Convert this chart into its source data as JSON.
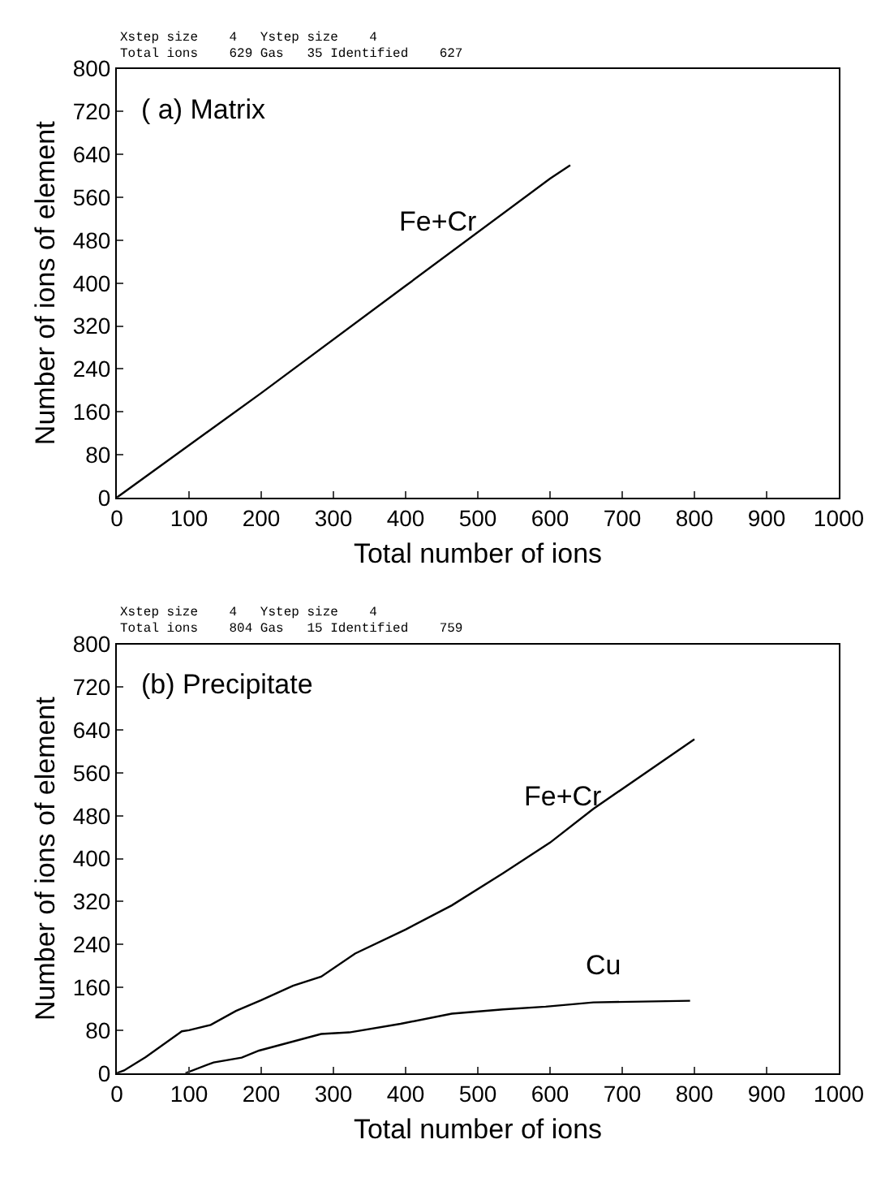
{
  "chart_data": [
    {
      "type": "line",
      "title": "( a) Matrix",
      "xlabel": "Total number of ions",
      "ylabel": "Number of ions of element",
      "annotations": [
        "Xstep size    4   Ystep size    4",
        "Total ions    629 Gas   35 Identified    627"
      ],
      "xlim": [
        0,
        1000
      ],
      "ylim": [
        0,
        800
      ],
      "xticks": [
        0,
        100,
        200,
        300,
        400,
        500,
        600,
        700,
        800,
        900,
        1000
      ],
      "yticks": [
        0,
        80,
        160,
        240,
        320,
        400,
        480,
        560,
        640,
        720,
        800
      ],
      "marker": "none",
      "line_style": "solid",
      "series": [
        {
          "name": "Fe+Cr",
          "color": "#000000",
          "x": [
            0,
            200,
            400,
            600,
            628
          ],
          "values": [
            0,
            195,
            395,
            595,
            620
          ]
        }
      ]
    },
    {
      "type": "line",
      "title": "(b) Precipitate",
      "xlabel": "Total number of ions",
      "ylabel": "Number of ions of element",
      "annotations": [
        "Xstep size    4   Ystep size    4",
        "Total ions    804 Gas   15 Identified    759"
      ],
      "xlim": [
        0,
        1000
      ],
      "ylim": [
        0,
        800
      ],
      "xticks": [
        0,
        100,
        200,
        300,
        400,
        500,
        600,
        700,
        800,
        900,
        1000
      ],
      "yticks": [
        0,
        80,
        160,
        240,
        320,
        400,
        480,
        560,
        640,
        720,
        800
      ],
      "marker": "none",
      "line_style": "solid",
      "series": [
        {
          "name": "Fe+Cr",
          "color": "#000000",
          "x": [
            0,
            10,
            40,
            90,
            100,
            130,
            165,
            200,
            244,
            283,
            330,
            400,
            464,
            535,
            600,
            660,
            800
          ],
          "values": [
            0,
            5,
            30,
            78,
            80,
            90,
            116,
            136,
            163,
            180,
            223,
            268,
            313,
            373,
            430,
            493,
            623
          ]
        },
        {
          "name": "Cu",
          "color": "#000000",
          "x": [
            95,
            134,
            173,
            197,
            283,
            322,
            393,
            464,
            535,
            594,
            660,
            794
          ],
          "values": [
            0,
            20,
            29,
            42,
            73,
            76,
            92,
            111,
            119,
            124,
            132,
            135
          ]
        }
      ]
    }
  ]
}
